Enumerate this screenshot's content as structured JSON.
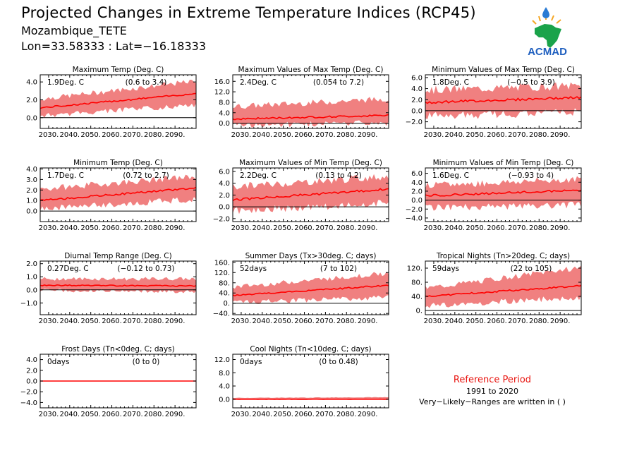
{
  "header": {
    "title": "Projected Changes in Extreme Temperature Indices (RCP45)",
    "location": "Mozambique_TETE",
    "coordinates": "Lon=33.58333 : Lat=−16.18333"
  },
  "logo": {
    "text": "ACMAD",
    "icon": "africa-map-logo-icon"
  },
  "legend_note": {
    "title": "Reference Period",
    "years": "1991 to 2020",
    "note": "Very−Likely−Ranges are written in ( )"
  },
  "colors": {
    "band": "#f08080",
    "median": "#ff0000",
    "frame": "#000000",
    "accent": "#e8140f"
  },
  "chart_data": [
    {
      "id": "txx_mean",
      "type": "area",
      "title": "Maximum Temp (Deg. C)",
      "stat": "1.9Deg. C",
      "range": "(0.6 to 3.4)",
      "x_ticks": [
        "2030.",
        "2040.",
        "2050.",
        "2060.",
        "2070.",
        "2080.",
        "2090."
      ],
      "xlim": [
        2026,
        2100
      ],
      "ylim": [
        -1.2,
        4.8
      ],
      "y_ticks": [
        "4.0",
        "2.0",
        "0.0"
      ],
      "y_tick_values": [
        4,
        2,
        0
      ],
      "zero_line": true,
      "median_start": 1.1,
      "median_end": 2.7,
      "band_lower_start": 0.3,
      "band_lower_end": 1.5,
      "band_upper_start": 2.0,
      "band_upper_end": 4.0
    },
    {
      "id": "txx",
      "type": "area",
      "title": "Maximum Values of Max Temp (Deg. C)",
      "stat": "2.4Deg. C",
      "range": "(0.054 to 7.2)",
      "x_ticks": [
        "2030.",
        "2040.",
        "2050.",
        "2060.",
        "2070.",
        "2080.",
        "2090."
      ],
      "xlim": [
        2026,
        2100
      ],
      "ylim": [
        -2,
        18.5
      ],
      "y_ticks": [
        "16.0",
        "12.0",
        "8.0",
        "4.0",
        "0.0"
      ],
      "y_tick_values": [
        16,
        12,
        8,
        4,
        0
      ],
      "zero_line": true,
      "median_start": 1.6,
      "median_end": 3.0,
      "band_lower_start": -0.5,
      "band_lower_end": 0.5,
      "band_upper_start": 6.0,
      "band_upper_end": 9.0
    },
    {
      "id": "txn",
      "type": "area",
      "title": "Minimum Values of Max Temp (Deg. C)",
      "stat": "1.8Deg. C",
      "range": "(−0.5 to 3.9)",
      "x_ticks": [
        "2030.",
        "2040.",
        "2050.",
        "2060.",
        "2070.",
        "2080.",
        "2090."
      ],
      "xlim": [
        2026,
        2100
      ],
      "ylim": [
        -3.2,
        6.5
      ],
      "y_ticks": [
        "6.0",
        "4.0",
        "2.0",
        "0.0",
        "−2.0"
      ],
      "y_tick_values": [
        6,
        4,
        2,
        0,
        -2
      ],
      "zero_line": true,
      "median_start": 1.5,
      "median_end": 2.4,
      "band_lower_start": -0.8,
      "band_lower_end": 0.0,
      "band_upper_start": 3.5,
      "band_upper_end": 4.3
    },
    {
      "id": "tn_mean",
      "type": "area",
      "title": "Minimum Temp (Deg. C)",
      "stat": "1.7Deg. C",
      "range": "(0.72 to 2.7)",
      "x_ticks": [
        "2030.",
        "2040.",
        "2050.",
        "2060.",
        "2070.",
        "2080.",
        "2090."
      ],
      "xlim": [
        2026,
        2100
      ],
      "ylim": [
        -1.0,
        4.1
      ],
      "y_ticks": [
        "4.0",
        "3.0",
        "2.0",
        "1.0",
        "0.0"
      ],
      "y_tick_values": [
        4,
        3,
        2,
        1,
        0
      ],
      "zero_line": true,
      "median_start": 1.0,
      "median_end": 2.2,
      "band_lower_start": 0.3,
      "band_lower_end": 1.2,
      "band_upper_start": 2.0,
      "band_upper_end": 3.2
    },
    {
      "id": "tnx",
      "type": "area",
      "title": "Maximum Values of Min Temp (Deg. C)",
      "stat": "2.2Deg. C",
      "range": "(0.13 to 4.2)",
      "x_ticks": [
        "2030.",
        "2040.",
        "2050.",
        "2060.",
        "2070.",
        "2080.",
        "2090."
      ],
      "xlim": [
        2026,
        2100
      ],
      "ylim": [
        -2.5,
        6.6
      ],
      "y_ticks": [
        "6.0",
        "4.0",
        "2.0",
        "0.0",
        "−2.0"
      ],
      "y_tick_values": [
        6,
        4,
        2,
        0,
        -2
      ],
      "zero_line": true,
      "median_start": 1.2,
      "median_end": 3.0,
      "band_lower_start": -0.5,
      "band_lower_end": 0.8,
      "band_upper_start": 3.2,
      "band_upper_end": 5.0
    },
    {
      "id": "tnn",
      "type": "area",
      "title": "Minimum Values of Min Temp (Deg. C)",
      "stat": "1.6Deg. C",
      "range": "(−0.93 to 4)",
      "x_ticks": [
        "2030.",
        "2040.",
        "2050.",
        "2060.",
        "2070.",
        "2080.",
        "2090."
      ],
      "xlim": [
        2026,
        2100
      ],
      "ylim": [
        -4.8,
        7.2
      ],
      "y_ticks": [
        "6.0",
        "4.0",
        "2.0",
        "0.0",
        "−2.0",
        "−4.0"
      ],
      "y_tick_values": [
        6,
        4,
        2,
        0,
        -2,
        -4
      ],
      "zero_line": true,
      "median_start": 1.0,
      "median_end": 2.2,
      "band_lower_start": -1.5,
      "band_lower_end": -0.8,
      "band_upper_start": 3.0,
      "band_upper_end": 4.5
    },
    {
      "id": "dtr",
      "type": "area",
      "title": "Diurnal Temp Range (Deg. C)",
      "stat": "0.27Deg. C",
      "range": "(−0.12 to 0.73)",
      "x_ticks": [
        "2030.",
        "2040.",
        "2050.",
        "2060.",
        "2070.",
        "2080.",
        "2090."
      ],
      "xlim": [
        2026,
        2100
      ],
      "ylim": [
        -1.9,
        2.2
      ],
      "y_ticks": [
        "2.0",
        "1.0",
        "0.0",
        "−1.0"
      ],
      "y_tick_values": [
        2,
        1,
        0,
        -1
      ],
      "zero_line": true,
      "median_start": 0.35,
      "median_end": 0.3,
      "band_lower_start": 0.0,
      "band_lower_end": -0.1,
      "band_upper_start": 0.8,
      "band_upper_end": 0.8
    },
    {
      "id": "su",
      "type": "area",
      "title": "Summer Days (Tx>30deg. C; days)",
      "stat": "52days",
      "range": "(7 to 102)",
      "x_ticks": [
        "2030.",
        "2040.",
        "2050.",
        "2060.",
        "2070.",
        "2080.",
        "2090."
      ],
      "xlim": [
        2026,
        2100
      ],
      "ylim": [
        -45,
        165
      ],
      "y_ticks": [
        "160.",
        "120.",
        "80.",
        "40.",
        "0.",
        "−40."
      ],
      "y_tick_values": [
        160,
        120,
        80,
        40,
        0,
        -40
      ],
      "zero_line": true,
      "median_start": 30,
      "median_end": 70,
      "band_lower_start": 5,
      "band_lower_end": 25,
      "band_upper_start": 60,
      "band_upper_end": 115
    },
    {
      "id": "tr",
      "type": "area",
      "title": "Tropical Nights (Tn>20deg. C; days)",
      "stat": "59days",
      "range": "(22 to 105)",
      "x_ticks": [
        "2030.",
        "2040.",
        "2050.",
        "2060.",
        "2070.",
        "2080.",
        "2090."
      ],
      "xlim": [
        2026,
        2100
      ],
      "ylim": [
        -12,
        140
      ],
      "y_ticks": [
        "120.",
        "80.",
        "40.",
        "0."
      ],
      "y_tick_values": [
        120,
        80,
        40,
        0
      ],
      "zero_line": true,
      "median_start": 40,
      "median_end": 70,
      "band_lower_start": 15,
      "band_lower_end": 40,
      "band_upper_start": 60,
      "band_upper_end": 120
    },
    {
      "id": "fd",
      "type": "area",
      "title": "Frost Days (Tn<0deg. C; days)",
      "stat": "0days",
      "range": "(0 to 0)",
      "x_ticks": [
        "2030.",
        "2040.",
        "2050.",
        "2060.",
        "2070.",
        "2080.",
        "2090."
      ],
      "xlim": [
        2026,
        2100
      ],
      "ylim": [
        -5,
        5
      ],
      "y_ticks": [
        "4.0",
        "2.0",
        "0.0",
        "−2.0",
        "−4.0"
      ],
      "y_tick_values": [
        4,
        2,
        0,
        -2,
        -4
      ],
      "zero_line": true,
      "median_start": 0,
      "median_end": 0,
      "band_lower_start": 0,
      "band_lower_end": 0,
      "band_upper_start": 0,
      "band_upper_end": 0
    },
    {
      "id": "cn",
      "type": "area",
      "title": "Cool Nights (Tn<10deg. C; days)",
      "stat": "0days",
      "range": "(0 to 0.48)",
      "x_ticks": [
        "2030.",
        "2040.",
        "2050.",
        "2060.",
        "2070.",
        "2080.",
        "2090."
      ],
      "xlim": [
        2026,
        2100
      ],
      "ylim": [
        -2.6,
        13.6
      ],
      "y_ticks": [
        "12.0",
        "8.0",
        "4.0",
        "0.0"
      ],
      "y_tick_values": [
        12,
        8,
        4,
        0
      ],
      "zero_line": true,
      "median_start": 0,
      "median_end": 0,
      "band_lower_start": 0,
      "band_lower_end": 0,
      "band_upper_start": 0.4,
      "band_upper_end": 0.6
    }
  ]
}
